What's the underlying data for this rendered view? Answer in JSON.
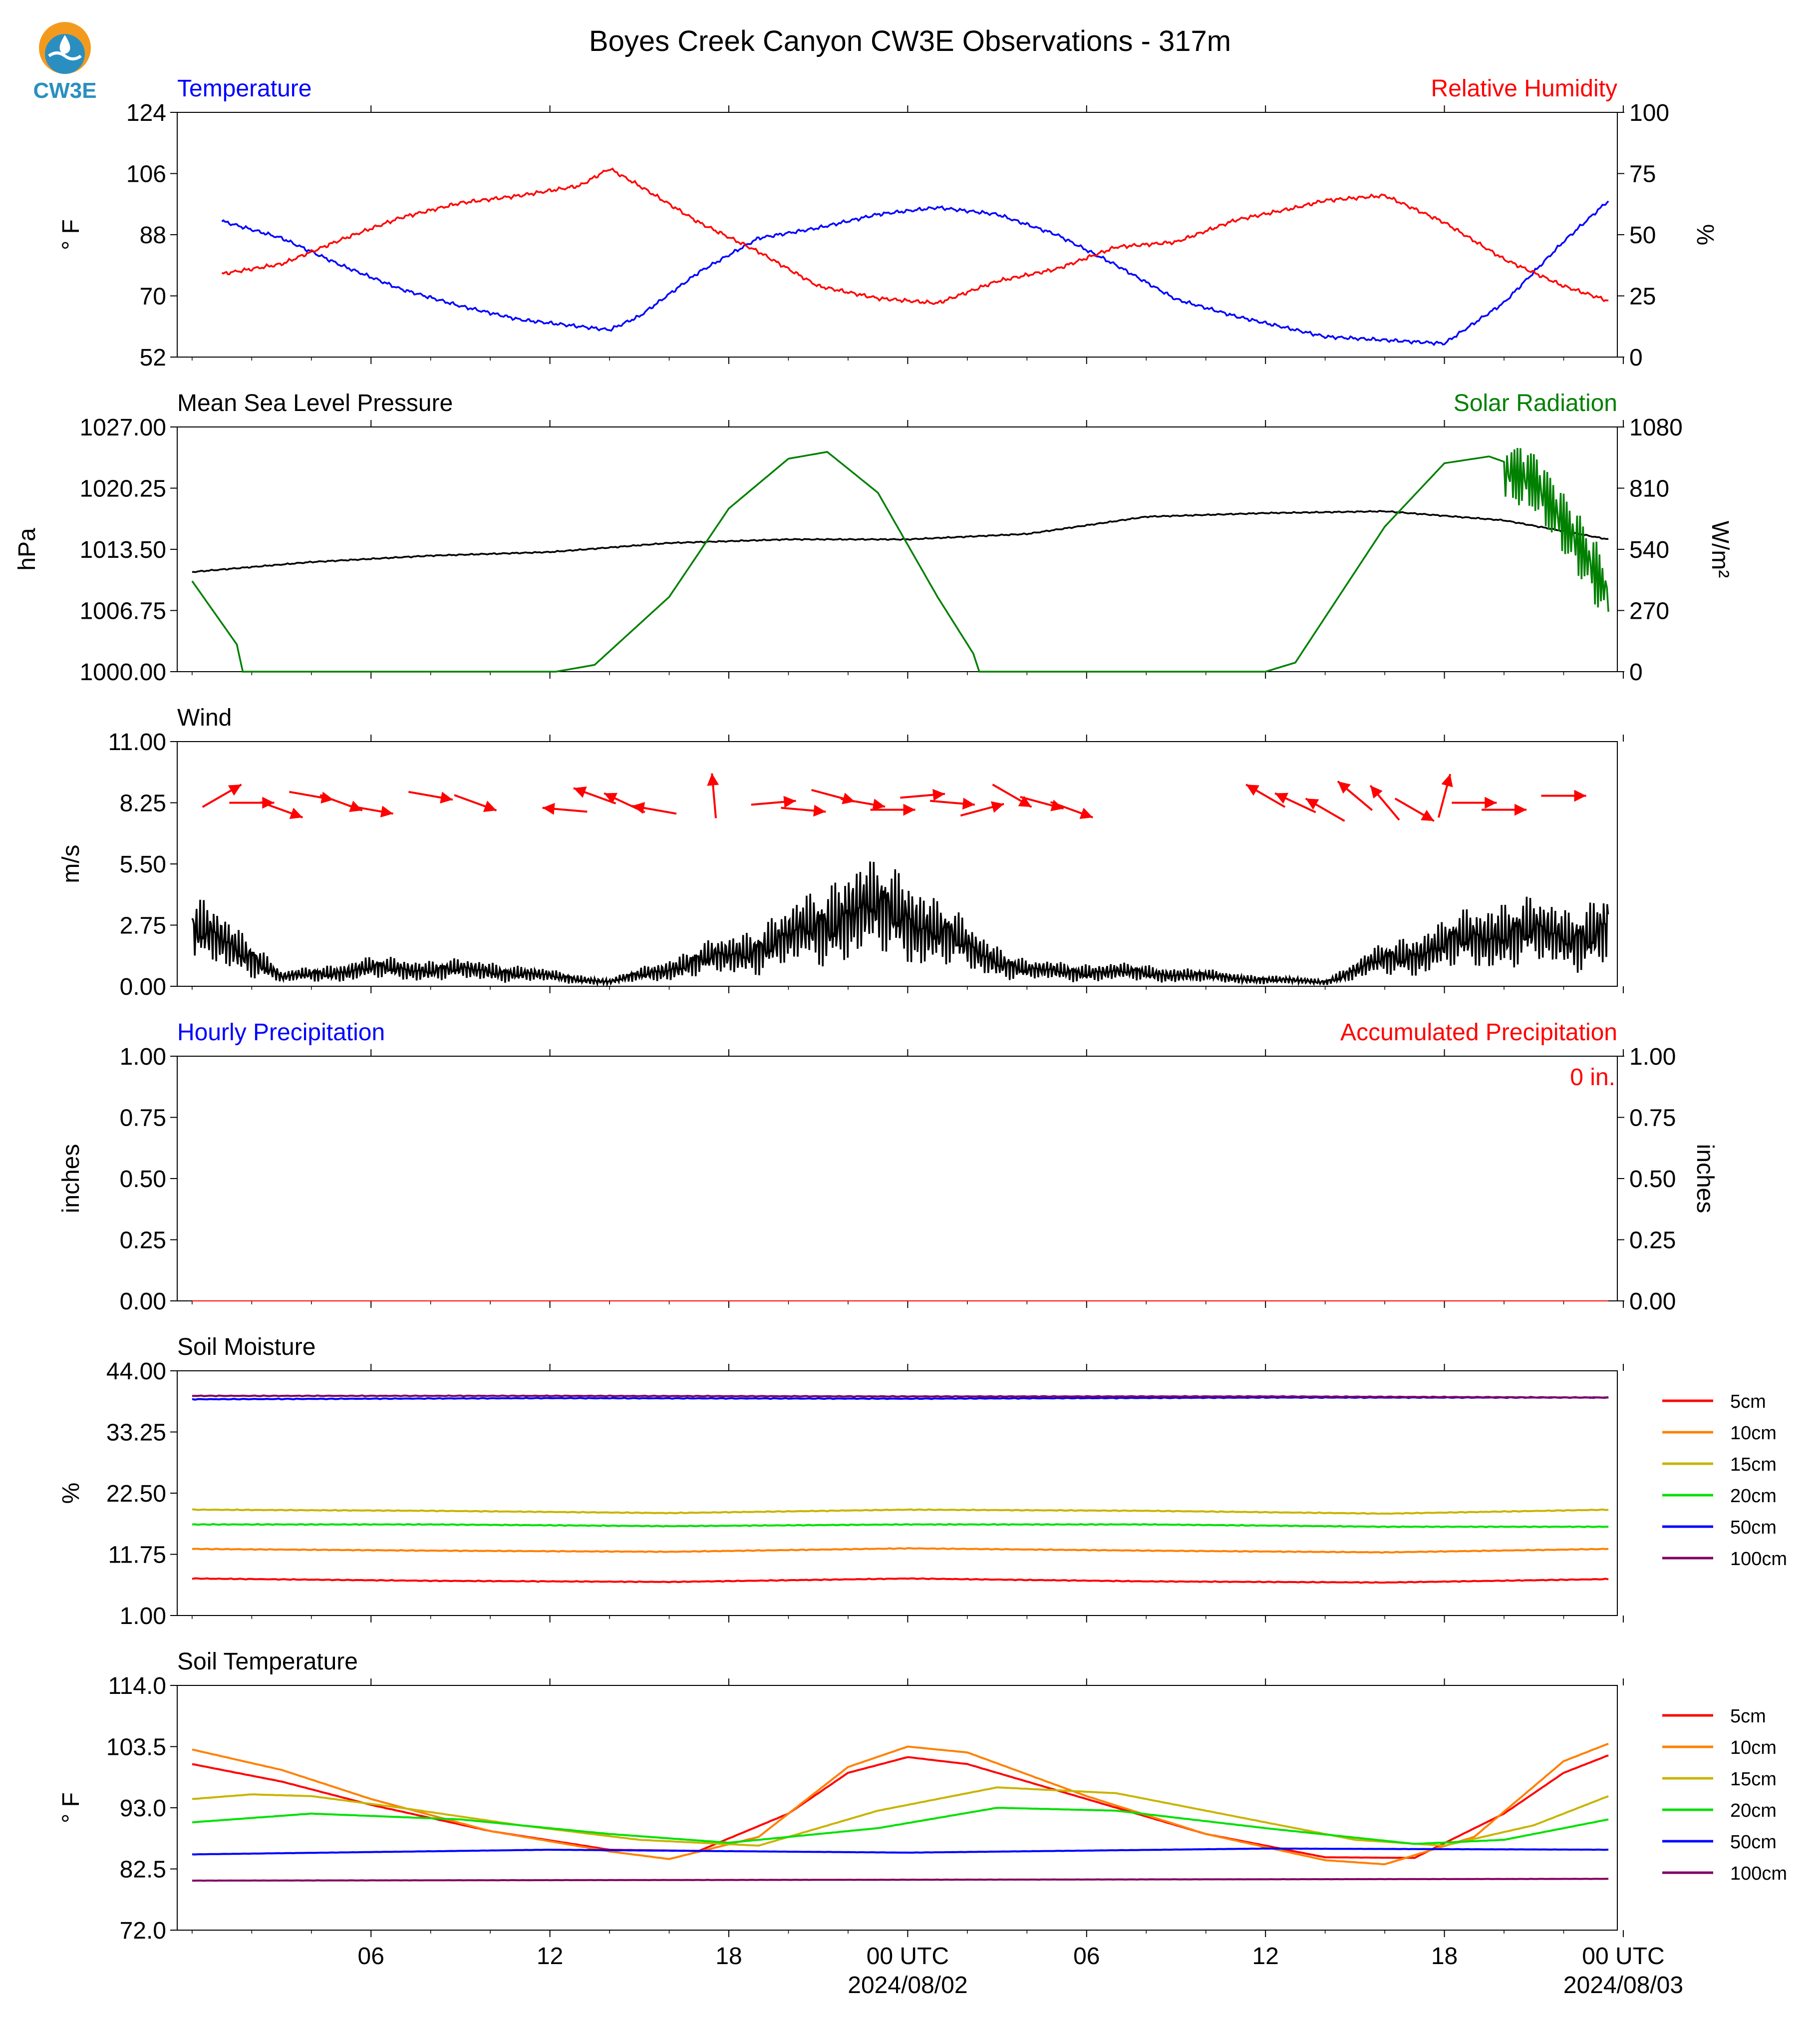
{
  "title": "Boyes Creek Canyon CW3E Observations - 317m",
  "logo_text": "CW3E",
  "colors": {
    "temp": "#0000ff",
    "rh": "#ff0000",
    "pressure": "#000000",
    "solar": "#008000",
    "wind_arrow": "#ff0000",
    "wind_speed": "#000000",
    "precip_hourly": "#0000ff",
    "precip_accum": "#ff0000",
    "logo_orange": "#f39a1e",
    "logo_blue": "#2a8fc0",
    "depth": [
      "#ff0000",
      "#ff8000",
      "#c8b400",
      "#00e000",
      "#0000ff",
      "#800060"
    ]
  },
  "x_axis": {
    "ticks": [
      "06",
      "12",
      "18",
      "00 UTC",
      "06",
      "12",
      "18",
      "00 UTC"
    ],
    "dates": [
      "2024/08/02",
      "2024/08/03"
    ]
  },
  "chart_data": [
    {
      "type": "line",
      "left_title": "Temperature",
      "right_title": "Relative Humidity",
      "ylabel_left": "° F",
      "ylabel_right": "%",
      "ylim_left": [
        52,
        124
      ],
      "ylim_right": [
        0,
        100
      ],
      "yticks_left": [
        "52",
        "70",
        "88",
        "106",
        "124"
      ],
      "yticks_right": [
        "0",
        "25",
        "50",
        "75",
        "100"
      ],
      "series": [
        {
          "axis": "left",
          "values_x_hours": [
            1,
            3,
            5,
            7,
            9,
            11,
            13,
            14,
            15,
            17,
            19,
            21,
            23,
            25,
            27,
            29,
            31,
            33,
            35,
            37,
            38,
            40,
            42,
            44,
            46,
            47.5
          ],
          "values": [
            92,
            87,
            79,
            72,
            67,
            63,
            61,
            60,
            64,
            77,
            87,
            90,
            94,
            96,
            94,
            88,
            79,
            69,
            64,
            60,
            58,
            57,
            56,
            68,
            86,
            98
          ]
        },
        {
          "axis": "right",
          "values_x_hours": [
            1,
            3,
            5,
            7,
            9,
            11,
            13,
            14,
            15,
            17,
            19,
            21,
            23,
            25,
            27,
            29,
            31,
            33,
            35,
            37,
            38,
            40,
            42,
            44,
            46,
            47.5
          ],
          "values": [
            34,
            38,
            48,
            57,
            63,
            66,
            70,
            77,
            70,
            55,
            43,
            29,
            24,
            22,
            31,
            36,
            45,
            47,
            56,
            61,
            64,
            66,
            55,
            40,
            29,
            23
          ]
        }
      ]
    },
    {
      "type": "line",
      "left_title": "Mean Sea Level Pressure",
      "right_title": "Solar Radiation",
      "ylabel_left": "hPa",
      "ylabel_right": "W/m²",
      "ylim_left": [
        1000,
        1027
      ],
      "ylim_right": [
        0,
        1080
      ],
      "yticks_left": [
        "1000.00",
        "1006.75",
        "1013.50",
        "1020.25",
        "1027.00"
      ],
      "yticks_right": [
        "0",
        "270",
        "540",
        "810",
        "1080"
      ],
      "series": [
        {
          "axis": "left",
          "values_x_hours": [
            0,
            4,
            8,
            12,
            16,
            20,
            24,
            28,
            32,
            36,
            40,
            44,
            47.5
          ],
          "values": [
            1011.0,
            1012.1,
            1012.8,
            1013.2,
            1014.2,
            1014.6,
            1014.6,
            1015.2,
            1017.1,
            1017.5,
            1017.7,
            1016.7,
            1014.6
          ]
        },
        {
          "axis": "right",
          "values_x_hours": [
            0,
            1.5,
            1.7,
            12.2,
            13.5,
            16,
            18,
            20,
            21.3,
            23,
            25,
            26.2,
            26.4,
            36,
            37,
            38,
            40,
            42,
            43.5,
            45,
            46.5,
            47.5
          ],
          "values": [
            400,
            120,
            0,
            0,
            30,
            330,
            720,
            940,
            970,
            790,
            330,
            80,
            0,
            0,
            40,
            240,
            640,
            920,
            950,
            880,
            600,
            380
          ]
        }
      ]
    },
    {
      "type": "line",
      "left_title": "Wind",
      "ylabel_left": "m/s",
      "ylim_left": [
        0,
        11
      ],
      "yticks_left": [
        "0.00",
        "2.75",
        "5.50",
        "8.25",
        "11.00"
      ],
      "series": [
        {
          "name": "speed",
          "values_x_hours": [
            0,
            2,
            3,
            6,
            10,
            14,
            18,
            20,
            22,
            24,
            26,
            28,
            32,
            36,
            38,
            40,
            42,
            44,
            46,
            47.5
          ],
          "values": [
            2.5,
            1.4,
            0.4,
            0.8,
            0.7,
            0.2,
            1.4,
            2.1,
            3.4,
            3.2,
            1.7,
            0.7,
            0.6,
            0.3,
            0.2,
            1.2,
            1.8,
            2.5,
            2.2,
            2.6
          ]
        },
        {
          "name": "direction_arrows",
          "values_x_hours": [
            1,
            2,
            3,
            4,
            5,
            6,
            8,
            9.5,
            12.5,
            13.5,
            14.5,
            15.5,
            17.5,
            19.5,
            20.5,
            21.5,
            22.5,
            23.5,
            24.5,
            25.5,
            26.5,
            27.5,
            28.5,
            29.5,
            36,
            37,
            38,
            39,
            40,
            41,
            42,
            43,
            44,
            46
          ],
          "values_dir_deg": [
            60,
            90,
            110,
            100,
            110,
            100,
            100,
            110,
            275,
            290,
            295,
            280,
            355,
            85,
            95,
            105,
            100,
            90,
            85,
            95,
            75,
            120,
            105,
            110,
            300,
            295,
            300,
            310,
            320,
            120,
            15,
            90,
            90,
            90
          ]
        }
      ]
    },
    {
      "type": "line",
      "left_title": "Hourly Precipitation",
      "right_title": "Accumulated Precipitation",
      "annotation": "0 in.",
      "ylabel_left": "inches",
      "ylabel_right": "inches",
      "ylim_left": [
        0,
        1
      ],
      "ylim_right": [
        0,
        1
      ],
      "yticks_left": [
        "0.00",
        "0.25",
        "0.50",
        "0.75",
        "1.00"
      ],
      "yticks_right": [
        "0.00",
        "0.25",
        "0.50",
        "0.75",
        "1.00"
      ],
      "series": [
        {
          "axis": "left",
          "values_x_hours": [
            0,
            47.5
          ],
          "values": [
            0,
            0
          ]
        }
      ]
    },
    {
      "type": "line",
      "left_title": "Soil Moisture",
      "ylabel_left": "%",
      "ylim_left": [
        1,
        44
      ],
      "yticks_left": [
        "1.00",
        "11.75",
        "22.50",
        "33.25",
        "44.00"
      ],
      "legend": [
        "5cm",
        "10cm",
        "15cm",
        "20cm",
        "50cm",
        "100cm"
      ],
      "series": [
        {
          "values_x_hours": [
            0,
            8,
            16,
            24,
            32,
            40,
            47.5
          ],
          "values": [
            7.5,
            7.1,
            6.9,
            7.5,
            7.0,
            6.8,
            7.4
          ]
        },
        {
          "values_x_hours": [
            0,
            8,
            16,
            24,
            32,
            40,
            47.5
          ],
          "values": [
            12.7,
            12.4,
            12.2,
            12.8,
            12.4,
            12.1,
            12.7
          ]
        },
        {
          "values_x_hours": [
            0,
            8,
            16,
            24,
            32,
            40,
            47.5
          ],
          "values": [
            19.6,
            19.4,
            19.0,
            19.6,
            19.4,
            18.9,
            19.6
          ]
        },
        {
          "values_x_hours": [
            0,
            8,
            16,
            24,
            32,
            40,
            47.5
          ],
          "values": [
            17.0,
            17.0,
            16.7,
            17.0,
            17.0,
            16.6,
            16.6
          ]
        },
        {
          "values_x_hours": [
            0,
            12,
            24,
            36,
            47.5
          ],
          "values": [
            39.0,
            39.2,
            39.1,
            39.3,
            39.3
          ]
        },
        {
          "values_x_hours": [
            0,
            12,
            24,
            36,
            47.5
          ],
          "values": [
            39.6,
            39.6,
            39.5,
            39.5,
            39.3
          ]
        }
      ]
    },
    {
      "type": "line",
      "left_title": "Soil Temperature",
      "ylabel_left": "° F",
      "ylim_left": [
        72,
        114
      ],
      "yticks_left": [
        "72.0",
        "82.5",
        "93.0",
        "103.5",
        "114.0"
      ],
      "legend": [
        "5cm",
        "10cm",
        "15cm",
        "20cm",
        "50cm",
        "100cm"
      ],
      "series": [
        {
          "values_x_hours": [
            0,
            3,
            6,
            10,
            14,
            17,
            20,
            22,
            24,
            26,
            30,
            34,
            38,
            41,
            44,
            46,
            47.5
          ],
          "values": [
            100.5,
            97.5,
            93.5,
            89.0,
            85.8,
            85.6,
            92.0,
            99.0,
            101.7,
            100.5,
            94.5,
            88.5,
            84.5,
            84.4,
            92.0,
            99.0,
            102.0
          ]
        },
        {
          "values_x_hours": [
            0,
            3,
            6,
            10,
            14,
            16,
            19,
            22,
            24,
            26,
            30,
            34,
            38,
            40,
            43,
            46,
            47.5
          ],
          "values": [
            103.0,
            99.5,
            94.5,
            89.0,
            85.5,
            84.2,
            88.0,
            100.0,
            103.5,
            102.5,
            95.0,
            88.5,
            84.0,
            83.3,
            88.0,
            101.0,
            104.0
          ]
        },
        {
          "values_x_hours": [
            0,
            2,
            4,
            7,
            11,
            15,
            19,
            23,
            27,
            31,
            35,
            39,
            42,
            45,
            47.5
          ],
          "values": [
            94.5,
            95.3,
            95.0,
            93.0,
            90.0,
            87.5,
            86.5,
            92.5,
            96.5,
            95.5,
            91.5,
            87.5,
            86.5,
            90.0,
            95.0
          ]
        },
        {
          "values_x_hours": [
            0,
            4,
            9,
            14,
            18,
            23,
            27,
            31,
            36,
            41,
            44,
            47.5
          ],
          "values": [
            90.5,
            92.0,
            91.0,
            88.5,
            87.0,
            89.5,
            93.0,
            92.5,
            89.5,
            86.8,
            87.5,
            91.0
          ]
        },
        {
          "values_x_hours": [
            0,
            12,
            24,
            36,
            47.5
          ],
          "values": [
            85.0,
            85.8,
            85.3,
            86.0,
            85.8
          ]
        },
        {
          "values_x_hours": [
            0,
            47.5
          ],
          "values": [
            80.5,
            80.8
          ]
        }
      ]
    }
  ]
}
